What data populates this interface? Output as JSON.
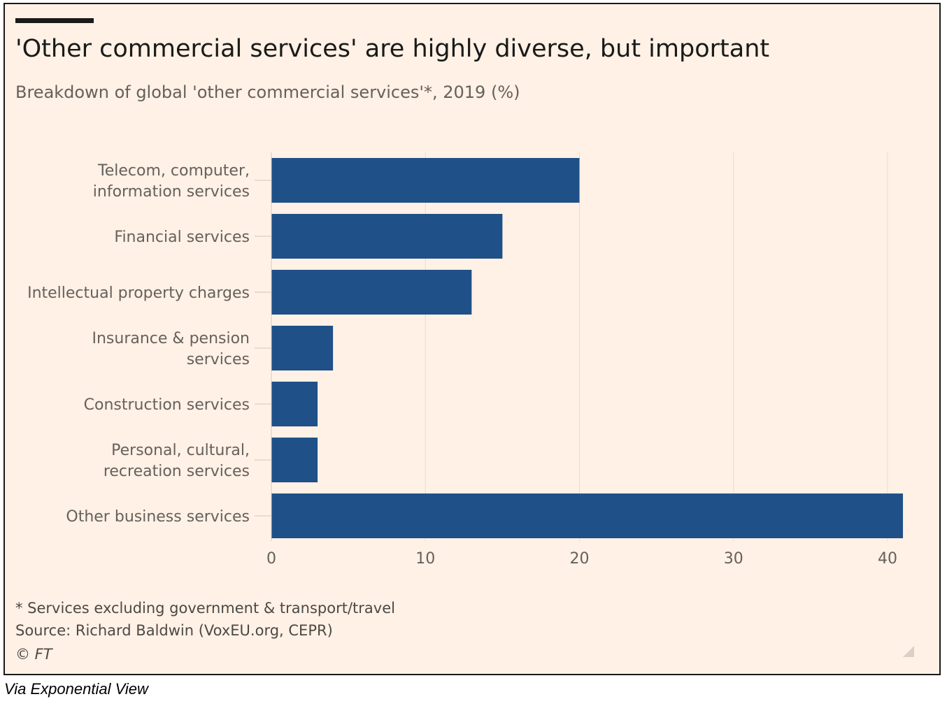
{
  "header": {
    "title": "'Other commercial services' are highly diverse, but important",
    "subtitle": "Breakdown of global 'other commercial services'*, 2019 (%)"
  },
  "footer": {
    "footnote": "* Services excluding government & transport/travel",
    "source": "Source: Richard Baldwin (VoxEU.org, CEPR)",
    "credit": "© FT"
  },
  "caption": "Via Exponential  View",
  "colors": {
    "bar": "#1f5088",
    "background": "#fff1e5",
    "grid": "#e6ddd5",
    "text": "#66605c"
  },
  "chart_data": {
    "type": "bar",
    "orientation": "horizontal",
    "title": "'Other commercial services' are highly diverse, but important",
    "subtitle": "Breakdown of global 'other commercial services'*, 2019 (%)",
    "categories": [
      "Telecom, computer, information services",
      "Financial services",
      "Intellectual property charges",
      "Insurance & pension services",
      "Construction services",
      "Personal, cultural, recreation services",
      "Other business services"
    ],
    "category_lines": [
      [
        "Telecom, computer,",
        "information services"
      ],
      [
        "Financial services"
      ],
      [
        "Intellectual property charges"
      ],
      [
        "Insurance & pension",
        "services"
      ],
      [
        "Construction services"
      ],
      [
        "Personal, cultural,",
        "recreation services"
      ],
      [
        "Other business services"
      ]
    ],
    "values": [
      20,
      15,
      13,
      4,
      3,
      3,
      41
    ],
    "xlim": [
      0,
      41
    ],
    "xticks": [
      0,
      10,
      20,
      30,
      40
    ],
    "grid": "vertical",
    "legend": "none"
  }
}
